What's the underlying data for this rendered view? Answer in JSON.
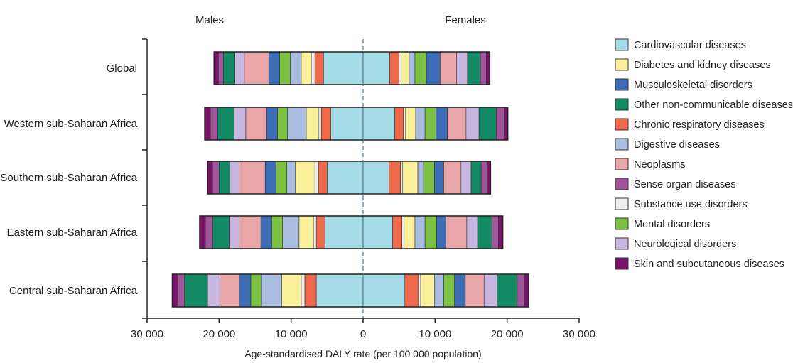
{
  "chart_data": {
    "type": "bar",
    "orientation": "horizontal",
    "stacked": true,
    "diverging": true,
    "xlabel": "Age-standardised DALY rate (per 100 000 population)",
    "xlim": [
      -30000,
      30000
    ],
    "xticks": [
      -30000,
      -20000,
      -10000,
      0,
      10000,
      20000,
      30000
    ],
    "xtick_labels": [
      "30 000",
      "20 000",
      "10 000",
      "0",
      "10 000",
      "20 000",
      "30 000"
    ],
    "sides": {
      "left": "Males",
      "right": "Females"
    },
    "categories": [
      "Global",
      "Western sub-Saharan Africa",
      "Southern sub-Saharan Africa",
      "Eastern sub-Saharan Africa",
      "Central sub-Saharan Africa"
    ],
    "grid": false,
    "legend_position": "right",
    "series": [
      {
        "name": "Cardiovascular diseases",
        "color": "#a6dbe8",
        "males": [
          5500,
          4500,
          5000,
          5300,
          6500
        ],
        "females": [
          3700,
          4400,
          3600,
          4100,
          5800
        ]
      },
      {
        "name": "Chronic respiratory diseases",
        "color": "#ee6a4a",
        "males": [
          1200,
          1300,
          1200,
          1200,
          1600
        ],
        "females": [
          1300,
          1200,
          1600,
          1300,
          1900
        ]
      },
      {
        "name": "Substance use disorders",
        "color": "#eeeeee",
        "males": [
          500,
          400,
          500,
          400,
          500
        ],
        "females": [
          300,
          300,
          300,
          300,
          300
        ]
      },
      {
        "name": "Diabetes and kidney diseases",
        "color": "#fdf09a",
        "males": [
          1400,
          1700,
          2700,
          2000,
          2700
        ],
        "females": [
          1100,
          1400,
          2100,
          1500,
          1900
        ]
      },
      {
        "name": "Digestive diseases",
        "color": "#a9bde0",
        "males": [
          1500,
          2600,
          1200,
          2300,
          2800
        ],
        "females": [
          800,
          1300,
          800,
          1400,
          1300
        ]
      },
      {
        "name": "Mental disorders",
        "color": "#7cc142",
        "males": [
          1500,
          1400,
          1500,
          1500,
          1500
        ],
        "females": [
          1600,
          1500,
          1500,
          1600,
          1500
        ]
      },
      {
        "name": "Musculoskeletal disorders",
        "color": "#3c6cb5",
        "males": [
          1500,
          1500,
          1500,
          1500,
          1600
        ],
        "females": [
          1900,
          1600,
          1300,
          1300,
          1500
        ]
      },
      {
        "name": "Neoplasms",
        "color": "#e8a6a8",
        "males": [
          3400,
          2900,
          3600,
          3000,
          2700
        ],
        "females": [
          2300,
          2600,
          2400,
          2900,
          2600
        ]
      },
      {
        "name": "Neurological disorders",
        "color": "#c7b7e0",
        "males": [
          1300,
          1600,
          1300,
          1400,
          1700
        ],
        "females": [
          1500,
          1800,
          1400,
          1500,
          1800
        ]
      },
      {
        "name": "Other non-communicable diseases",
        "color": "#138a63",
        "males": [
          1600,
          2300,
          1500,
          2300,
          3200
        ],
        "females": [
          1800,
          2400,
          1400,
          2000,
          2800
        ]
      },
      {
        "name": "Sense organ diseases",
        "color": "#a0559a",
        "males": [
          700,
          1000,
          900,
          1000,
          900
        ],
        "females": [
          800,
          1100,
          800,
          900,
          1000
        ]
      },
      {
        "name": "Skin and subcutaneous diseases",
        "color": "#7a1269",
        "males": [
          600,
          800,
          700,
          800,
          800
        ],
        "females": [
          500,
          500,
          500,
          600,
          600
        ]
      }
    ],
    "legend": [
      {
        "label": "Cardiovascular diseases",
        "color": "#a6dbe8"
      },
      {
        "label": "Diabetes and kidney diseases",
        "color": "#fdf09a"
      },
      {
        "label": "Musculoskeletal disorders",
        "color": "#3c6cb5"
      },
      {
        "label": "Other non-communicable diseases",
        "color": "#138a63"
      },
      {
        "label": "Chronic respiratory diseases",
        "color": "#ee6a4a"
      },
      {
        "label": "Digestive diseases",
        "color": "#a9bde0"
      },
      {
        "label": "Neoplasms",
        "color": "#e8a6a8"
      },
      {
        "label": "Sense organ diseases",
        "color": "#a0559a"
      },
      {
        "label": "Substance use disorders",
        "color": "#eeeeee"
      },
      {
        "label": "Mental disorders",
        "color": "#7cc142"
      },
      {
        "label": "Neurological disorders",
        "color": "#c7b7e0"
      },
      {
        "label": "Skin and subcutaneous diseases",
        "color": "#7a1269"
      }
    ]
  }
}
